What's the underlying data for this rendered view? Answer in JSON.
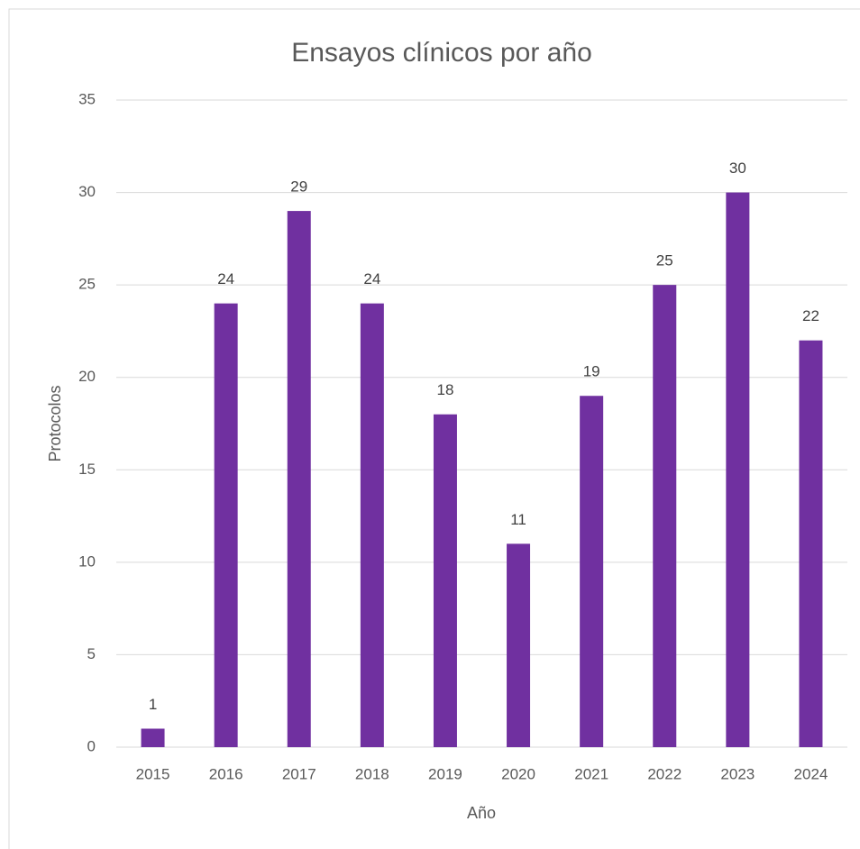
{
  "chart_data": {
    "type": "bar",
    "title": "Ensayos clínicos por año",
    "x_label": "Año",
    "y_label": "Protocolos",
    "categories": [
      "2015",
      "2016",
      "2017",
      "2018",
      "2019",
      "2020",
      "2021",
      "2022",
      "2023",
      "2024"
    ],
    "values": [
      1,
      24,
      29,
      24,
      18,
      11,
      19,
      25,
      30,
      22
    ],
    "color": "#7030a0",
    "ylim": [
      0,
      35
    ],
    "yticks": [
      0,
      5,
      10,
      15,
      20,
      25,
      30,
      35
    ],
    "grid": true,
    "data_labels": true
  }
}
